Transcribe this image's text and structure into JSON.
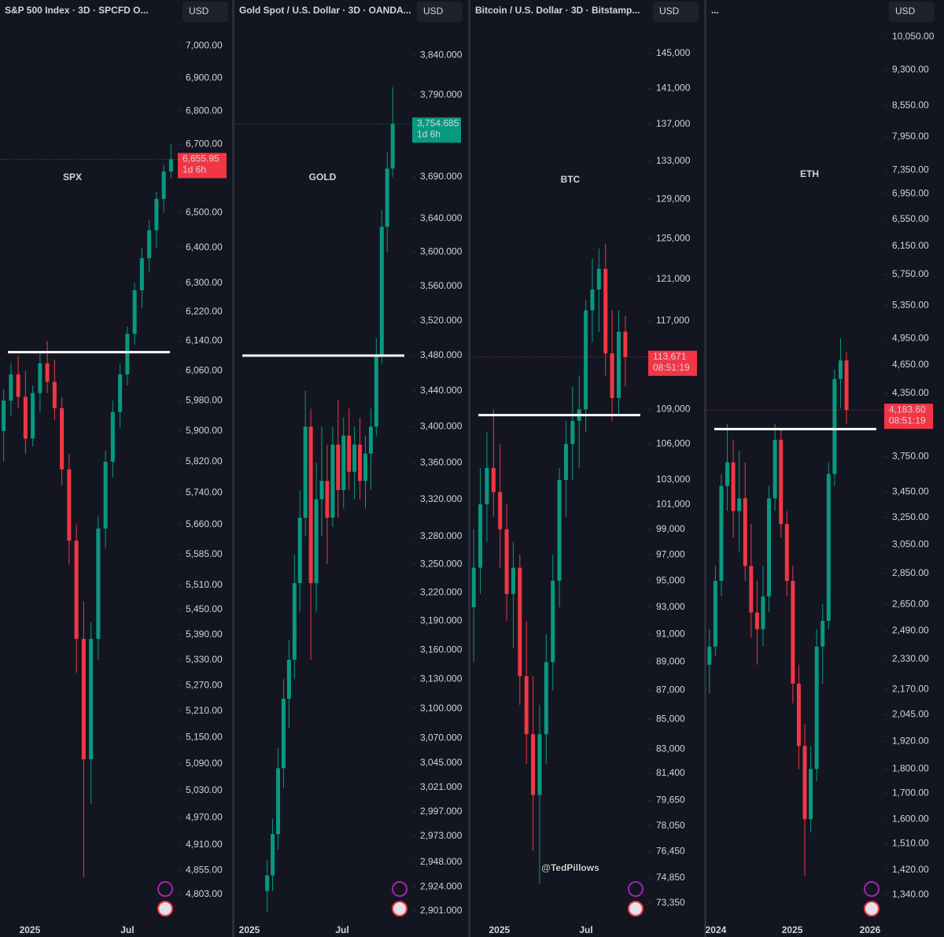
{
  "chart_data": [
    {
      "type": "candlestick",
      "title": "S&P 500 Index · 3D · SPCFD  O...",
      "currency": "USD",
      "label": "SPX",
      "log_scale": true,
      "grid": false,
      "up_color": "#089981",
      "down_color": "#f23645",
      "last_color": "#f23645",
      "categories": [
        null,
        null,
        null,
        null,
        null,
        null,
        null,
        null,
        null,
        null,
        null,
        null,
        null,
        null,
        null,
        null,
        null,
        null,
        null,
        null,
        null,
        null,
        null,
        null
      ],
      "open": [
        5900,
        5980,
        6050,
        5990,
        5880,
        6000,
        6080,
        6030,
        5960,
        5800,
        5620,
        5380,
        5100,
        5380,
        5650,
        5820,
        5950,
        6050,
        6160,
        6280,
        6370,
        6450,
        6540,
        6620
      ],
      "high": [
        6010,
        6080,
        6100,
        6060,
        6020,
        6110,
        6140,
        6090,
        5990,
        5840,
        5660,
        5470,
        5420,
        5680,
        5850,
        5980,
        6080,
        6180,
        6300,
        6400,
        6480,
        6560,
        6640,
        6700
      ],
      "low": [
        5820,
        5940,
        5960,
        5840,
        5860,
        5950,
        6000,
        5930,
        5760,
        5560,
        5300,
        4840,
        5000,
        5330,
        5600,
        5780,
        5910,
        6020,
        6130,
        6230,
        6330,
        6400,
        6500,
        6600
      ],
      "close": [
        5980,
        6050,
        5990,
        5880,
        6000,
        6080,
        6030,
        5960,
        5800,
        5620,
        5380,
        5100,
        5380,
        5650,
        5820,
        5950,
        6050,
        6160,
        6280,
        6370,
        6450,
        6540,
        6620,
        6655.95
      ],
      "last_label": "6,655.95",
      "countdown": "1d 6h",
      "level": 6110,
      "xlim": [
        -0.5,
        23.5
      ],
      "xticks": [
        {
          "value": 3.6,
          "label": "2025"
        },
        {
          "value": 17.0,
          "label": "Jul"
        }
      ],
      "ylim": [
        4748,
        7069
      ],
      "yticks": [
        {
          "value": 7000,
          "label": "7,000.00"
        },
        {
          "value": 6900,
          "label": "6,900.00"
        },
        {
          "value": 6800,
          "label": "6,800.00"
        },
        {
          "value": 6700,
          "label": "6,700.00"
        },
        {
          "value": 6500,
          "label": "6,500.00"
        },
        {
          "value": 6400,
          "label": "6,400.00"
        },
        {
          "value": 6300,
          "label": "6,300.00"
        },
        {
          "value": 6220,
          "label": "6,220.00"
        },
        {
          "value": 6140,
          "label": "6,140.00"
        },
        {
          "value": 6060,
          "label": "6,060.00"
        },
        {
          "value": 5980,
          "label": "5,980.00"
        },
        {
          "value": 5900,
          "label": "5,900.00"
        },
        {
          "value": 5820,
          "label": "5,820.00"
        },
        {
          "value": 5740,
          "label": "5,740.00"
        },
        {
          "value": 5660,
          "label": "5,660.00"
        },
        {
          "value": 5585,
          "label": "5,585.00"
        },
        {
          "value": 5510,
          "label": "5,510.00"
        },
        {
          "value": 5450,
          "label": "5,450.00"
        },
        {
          "value": 5390,
          "label": "5,390.00"
        },
        {
          "value": 5330,
          "label": "5,330.00"
        },
        {
          "value": 5270,
          "label": "5,270.00"
        },
        {
          "value": 5210,
          "label": "5,210.00"
        },
        {
          "value": 5150,
          "label": "5,150.00"
        },
        {
          "value": 5090,
          "label": "5,090.00"
        },
        {
          "value": 5030,
          "label": "5,030.00"
        },
        {
          "value": 4970,
          "label": "4,970.00"
        },
        {
          "value": 4910,
          "label": "4,910.00"
        },
        {
          "value": 4855,
          "label": "4,855.00"
        },
        {
          "value": 4803,
          "label": "4,803.00"
        }
      ]
    },
    {
      "type": "candlestick",
      "title": "Gold Spot / U.S. Dollar · 3D · OANDA...",
      "currency": "USD",
      "label": "GOLD",
      "log_scale": true,
      "grid": false,
      "up_color": "#089981",
      "down_color": "#f23645",
      "last_color": "#089981",
      "categories": [
        null,
        null,
        null,
        null,
        null,
        null,
        null,
        null,
        null,
        null,
        null,
        null,
        null,
        null,
        null,
        null,
        null,
        null,
        null,
        null,
        null,
        null,
        null,
        null
      ],
      "open": [
        2920,
        2935,
        2975,
        3040,
        3110,
        3150,
        3230,
        3300,
        3400,
        3230,
        3320,
        3340,
        3300,
        3380,
        3330,
        3390,
        3350,
        3380,
        3340,
        3370,
        3400,
        3480,
        3630,
        3700
      ],
      "high": [
        2950,
        2990,
        3060,
        3130,
        3170,
        3260,
        3330,
        3440,
        3420,
        3360,
        3400,
        3380,
        3400,
        3430,
        3410,
        3420,
        3400,
        3410,
        3390,
        3420,
        3500,
        3650,
        3720,
        3800
      ],
      "low": [
        2900,
        2920,
        2960,
        3020,
        3080,
        3130,
        3200,
        3280,
        3150,
        3200,
        3280,
        3250,
        3290,
        3300,
        3310,
        3330,
        3320,
        3320,
        3310,
        3330,
        3390,
        3470,
        3600,
        3690
      ],
      "close": [
        2935,
        2975,
        3040,
        3110,
        3150,
        3230,
        3300,
        3400,
        3230,
        3320,
        3340,
        3300,
        3380,
        3330,
        3390,
        3350,
        3380,
        3340,
        3370,
        3400,
        3480,
        3630,
        3700,
        3754.685
      ],
      "last_label": "3,754.685",
      "countdown": "1d 6h",
      "level": 3480,
      "xlim": [
        -6,
        26
      ],
      "xticks": [
        {
          "value": -3.26,
          "label": "2025"
        },
        {
          "value": 13.75,
          "label": "Jul"
        }
      ],
      "ylim": [
        2892,
        3880
      ],
      "yticks": [
        {
          "value": 3840,
          "label": "3,840.000"
        },
        {
          "value": 3790,
          "label": "3,790.000"
        },
        {
          "value": 3690,
          "label": "3,690.000"
        },
        {
          "value": 3640,
          "label": "3,640.000"
        },
        {
          "value": 3600,
          "label": "3,600.000"
        },
        {
          "value": 3560,
          "label": "3,560.000"
        },
        {
          "value": 3520,
          "label": "3,520.000"
        },
        {
          "value": 3480,
          "label": "3,480.000"
        },
        {
          "value": 3440,
          "label": "3,440.000"
        },
        {
          "value": 3400,
          "label": "3,400.000"
        },
        {
          "value": 3360,
          "label": "3,360.000"
        },
        {
          "value": 3320,
          "label": "3,320.000"
        },
        {
          "value": 3280,
          "label": "3,280.000"
        },
        {
          "value": 3250,
          "label": "3,250.000"
        },
        {
          "value": 3220,
          "label": "3,220.000"
        },
        {
          "value": 3190,
          "label": "3,190.000"
        },
        {
          "value": 3160,
          "label": "3,160.000"
        },
        {
          "value": 3130,
          "label": "3,130.000"
        },
        {
          "value": 3100,
          "label": "3,100.000"
        },
        {
          "value": 3070,
          "label": "3,070.000"
        },
        {
          "value": 3045,
          "label": "3,045.000"
        },
        {
          "value": 3021,
          "label": "3,021.000"
        },
        {
          "value": 2997,
          "label": "2,997.000"
        },
        {
          "value": 2973,
          "label": "2,973.000"
        },
        {
          "value": 2948,
          "label": "2,948.000"
        },
        {
          "value": 2924,
          "label": "2,924.000"
        },
        {
          "value": 2901,
          "label": "2,901.000"
        }
      ]
    },
    {
      "type": "candlestick",
      "title": "Bitcoin / U.S. Dollar · 3D · Bitstamp...",
      "currency": "USD",
      "label": "BTC",
      "log_scale": true,
      "grid": false,
      "up_color": "#089981",
      "down_color": "#f23645",
      "last_color": "#f23645",
      "categories": [
        null,
        null,
        null,
        null,
        null,
        null,
        null,
        null,
        null,
        null,
        null,
        null,
        null,
        null,
        null,
        null,
        null,
        null,
        null,
        null,
        null,
        null,
        null,
        null
      ],
      "open": [
        93000,
        96000,
        101000,
        104000,
        102000,
        99000,
        94000,
        96000,
        88000,
        84000,
        80000,
        84000,
        89000,
        95000,
        103000,
        106000,
        108000,
        109000,
        118000,
        120000,
        122000,
        114000,
        110000,
        116000
      ],
      "high": [
        99000,
        104000,
        107000,
        109000,
        106000,
        101000,
        98000,
        97000,
        92000,
        88000,
        86000,
        91000,
        97000,
        104000,
        108000,
        111000,
        112000,
        119000,
        123000,
        124000,
        124500,
        118000,
        118000,
        117500
      ],
      "low": [
        89000,
        94000,
        98000,
        100000,
        96000,
        92000,
        90000,
        86000,
        82000,
        76500,
        74500,
        82000,
        87000,
        93000,
        100000,
        103000,
        104000,
        107000,
        115000,
        116000,
        112000,
        108000,
        108500,
        111000
      ],
      "close": [
        96000,
        101000,
        104000,
        102000,
        99000,
        94000,
        96000,
        88000,
        84000,
        80000,
        84000,
        89000,
        95000,
        103000,
        106000,
        108000,
        109000,
        118000,
        120000,
        122000,
        114000,
        110000,
        116000,
        113671
      ],
      "last_label": "113,671",
      "countdown": "08:51:19",
      "level": 108500,
      "xlim": [
        -0.5,
        26
      ],
      "xticks": [
        {
          "value": 3.9,
          "label": "2025"
        },
        {
          "value": 17.05,
          "label": "Jul"
        }
      ],
      "ylim": [
        72340,
        148520
      ],
      "yticks": [
        {
          "value": 145000,
          "label": "145,000"
        },
        {
          "value": 141000,
          "label": "141,000"
        },
        {
          "value": 137000,
          "label": "137,000"
        },
        {
          "value": 133000,
          "label": "133,000"
        },
        {
          "value": 129000,
          "label": "129,000"
        },
        {
          "value": 125000,
          "label": "125,000"
        },
        {
          "value": 121000,
          "label": "121,000"
        },
        {
          "value": 117000,
          "label": "117,000"
        },
        {
          "value": 109000,
          "label": "109,000"
        },
        {
          "value": 106000,
          "label": "106,000"
        },
        {
          "value": 103000,
          "label": "103,000"
        },
        {
          "value": 101000,
          "label": "101,000"
        },
        {
          "value": 99000,
          "label": "99,000"
        },
        {
          "value": 97000,
          "label": "97,000"
        },
        {
          "value": 95000,
          "label": "95,000"
        },
        {
          "value": 93000,
          "label": "93,000"
        },
        {
          "value": 91000,
          "label": "91,000"
        },
        {
          "value": 89000,
          "label": "89,000"
        },
        {
          "value": 87000,
          "label": "87,000"
        },
        {
          "value": 85000,
          "label": "85,000"
        },
        {
          "value": 83000,
          "label": "83,000"
        },
        {
          "value": 81400,
          "label": "81,400"
        },
        {
          "value": 79650,
          "label": "79,650"
        },
        {
          "value": 78050,
          "label": "78,050"
        },
        {
          "value": 76450,
          "label": "76,450"
        },
        {
          "value": 74850,
          "label": "74,850"
        },
        {
          "value": 73350,
          "label": "73,350"
        }
      ]
    },
    {
      "type": "candlestick",
      "title": "...",
      "currency": "USD",
      "label": "ETH",
      "log_scale": true,
      "grid": false,
      "up_color": "#089981",
      "down_color": "#f23645",
      "last_color": "#f23645",
      "categories": [
        null,
        null,
        null,
        null,
        null,
        null,
        null,
        null,
        null,
        null,
        null,
        null,
        null,
        null,
        null,
        null,
        null,
        null,
        null,
        null,
        null,
        null,
        null,
        null
      ],
      "open": [
        2300,
        2400,
        2800,
        3500,
        3700,
        3300,
        3400,
        2900,
        2600,
        2500,
        2700,
        3400,
        3900,
        3200,
        2800,
        2200,
        1900,
        1600,
        1800,
        2400,
        2550,
        3600,
        4500,
        4700
      ],
      "high": [
        2500,
        2900,
        3600,
        4050,
        3900,
        3800,
        3700,
        3200,
        2800,
        2900,
        3500,
        4050,
        4000,
        3300,
        2900,
        2300,
        2000,
        1900,
        2500,
        2650,
        3700,
        4600,
        4950,
        4800
      ],
      "low": [
        2150,
        2350,
        2700,
        3300,
        3100,
        3000,
        2800,
        2450,
        2300,
        2400,
        2600,
        3300,
        3100,
        2700,
        2100,
        1800,
        1400,
        1550,
        1750,
        2200,
        2500,
        3500,
        4200,
        4050
      ],
      "close": [
        2400,
        2800,
        3500,
        3700,
        3300,
        3400,
        2900,
        2600,
        2500,
        2700,
        3400,
        3900,
        3200,
        2800,
        2200,
        1900,
        1600,
        1800,
        2400,
        2550,
        3600,
        4500,
        4700,
        4183.6
      ],
      "last_label": "4,183.60",
      "countdown": "08:51:19",
      "level": 4000,
      "xlim": [
        -0.5,
        28.8
      ],
      "xticks": [
        {
          "value": 1.08,
          "label": "2024"
        },
        {
          "value": 13.9,
          "label": "2025"
        },
        {
          "value": 26.95,
          "label": "2026"
        }
      ],
      "ylim": [
        1261,
        10370
      ],
      "yticks": [
        {
          "value": 10050,
          "label": "10,050.00"
        },
        {
          "value": 9300,
          "label": "9,300.00"
        },
        {
          "value": 8550,
          "label": "8,550.00"
        },
        {
          "value": 7950,
          "label": "7,950.00"
        },
        {
          "value": 7350,
          "label": "7,350.00"
        },
        {
          "value": 6950,
          "label": "6,950.00"
        },
        {
          "value": 6550,
          "label": "6,550.00"
        },
        {
          "value": 6150,
          "label": "6,150.00"
        },
        {
          "value": 5750,
          "label": "5,750.00"
        },
        {
          "value": 5350,
          "label": "5,350.00"
        },
        {
          "value": 4950,
          "label": "4,950.00"
        },
        {
          "value": 4650,
          "label": "4,650.00"
        },
        {
          "value": 4350,
          "label": "4,350.00"
        },
        {
          "value": 3750,
          "label": "3,750.00"
        },
        {
          "value": 3450,
          "label": "3,450.00"
        },
        {
          "value": 3250,
          "label": "3,250.00"
        },
        {
          "value": 3050,
          "label": "3,050.00"
        },
        {
          "value": 2850,
          "label": "2,850.00"
        },
        {
          "value": 2650,
          "label": "2,650.00"
        },
        {
          "value": 2490,
          "label": "2,490.00"
        },
        {
          "value": 2330,
          "label": "2,330.00"
        },
        {
          "value": 2170,
          "label": "2,170.00"
        },
        {
          "value": 2045,
          "label": "2,045.00"
        },
        {
          "value": 1920,
          "label": "1,920.00"
        },
        {
          "value": 1800,
          "label": "1,800.00"
        },
        {
          "value": 1700,
          "label": "1,700.00"
        },
        {
          "value": 1600,
          "label": "1,600.00"
        },
        {
          "value": 1510,
          "label": "1,510.00"
        },
        {
          "value": 1420,
          "label": "1,420.00"
        },
        {
          "value": 1340,
          "label": "1,340.00"
        }
      ]
    }
  ],
  "watermark": "@TedPillows"
}
